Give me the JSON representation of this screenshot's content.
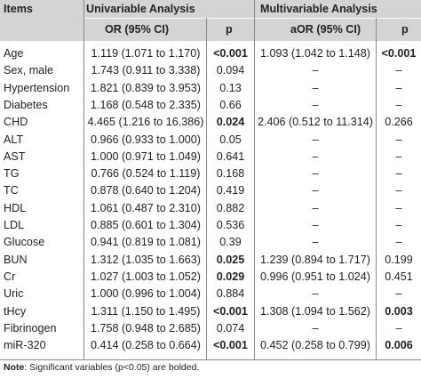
{
  "headers": {
    "items": "Items",
    "univariable": "Univariable Analysis",
    "multivariable": "Multivariable Analysis",
    "or_ci": "OR (95% CI)",
    "p1": "p",
    "aor_ci": "aOR (95% CI)",
    "p2": "p"
  },
  "rows": [
    {
      "item": "Age",
      "or": "1.119 (1.071 to 1.170)",
      "p1": "<0.001",
      "p1_bold": true,
      "aor": "1.093 (1.042 to 1.148)",
      "p2": "<0.001",
      "p2_bold": true
    },
    {
      "item": "Sex, male",
      "or": "1.743 (0.911 to 3.338)",
      "p1": "0.094",
      "p1_bold": false,
      "aor": "–",
      "p2": "–",
      "p2_bold": false
    },
    {
      "item": "Hypertension",
      "or": "1.821 (0.839 to 3.953)",
      "p1": "0.13",
      "p1_bold": false,
      "aor": "–",
      "p2": "–",
      "p2_bold": false
    },
    {
      "item": "Diabetes",
      "or": "1.168 (0.548 to 2.335)",
      "p1": "0.66",
      "p1_bold": false,
      "aor": "–",
      "p2": "–",
      "p2_bold": false
    },
    {
      "item": "CHD",
      "or": "4.465 (1.216 to 16.386)",
      "p1": "0.024",
      "p1_bold": true,
      "aor": "2.406 (0.512 to 11.314)",
      "p2": "0.266",
      "p2_bold": false
    },
    {
      "item": "ALT",
      "or": "0.966 (0.933 to 1.000)",
      "p1": "0.05",
      "p1_bold": false,
      "aor": "–",
      "p2": "–",
      "p2_bold": false
    },
    {
      "item": "AST",
      "or": "1.000 (0.971 to 1.049)",
      "p1": "0.641",
      "p1_bold": false,
      "aor": "–",
      "p2": "–",
      "p2_bold": false
    },
    {
      "item": "TG",
      "or": "0.766 (0.524 to 1.119)",
      "p1": "0.168",
      "p1_bold": false,
      "aor": "–",
      "p2": "–",
      "p2_bold": false
    },
    {
      "item": "TC",
      "or": "0.878 (0.640 to 1.204)",
      "p1": "0.419",
      "p1_bold": false,
      "aor": "–",
      "p2": "–",
      "p2_bold": false
    },
    {
      "item": "HDL",
      "or": "1.061 (0.487 to 2.310)",
      "p1": "0.882",
      "p1_bold": false,
      "aor": "–",
      "p2": "–",
      "p2_bold": false
    },
    {
      "item": "LDL",
      "or": "0.885 (0.601 to 1.304)",
      "p1": "0.536",
      "p1_bold": false,
      "aor": "–",
      "p2": "–",
      "p2_bold": false
    },
    {
      "item": "Glucose",
      "or": "0.941 (0.819 to 1.081)",
      "p1": "0.39",
      "p1_bold": false,
      "aor": "–",
      "p2": "–",
      "p2_bold": false
    },
    {
      "item": "BUN",
      "or": "1.312 (1.035 to 1.663)",
      "p1": "0.025",
      "p1_bold": true,
      "aor": "1.239 (0.894 to 1.717)",
      "p2": "0.199",
      "p2_bold": false
    },
    {
      "item": "Cr",
      "or": "1.027 (1.003 to 1.052)",
      "p1": "0.029",
      "p1_bold": true,
      "aor": "0.996 (0.951 to 1.024)",
      "p2": "0.451",
      "p2_bold": false
    },
    {
      "item": "Uric",
      "or": "1.000 (0.996 to 1.004)",
      "p1": "0.884",
      "p1_bold": false,
      "aor": "–",
      "p2": "–",
      "p2_bold": false
    },
    {
      "item": "tHcy",
      "or": "1.311 (1.150 to 1.495)",
      "p1": "<0.001",
      "p1_bold": true,
      "aor": "1.308 (1.094 to 1.562)",
      "p2": "0.003",
      "p2_bold": true
    },
    {
      "item": "Fibrinogen",
      "or": "1.758 (0.948 to 2.685)",
      "p1": "0.074",
      "p1_bold": false,
      "aor": "–",
      "p2": "–",
      "p2_bold": false
    },
    {
      "item": "miR-320",
      "or": "0.414 (0.258 to 0.664)",
      "p1": "<0.001",
      "p1_bold": true,
      "aor": "0.452 (0.258 to 0.799)",
      "p2": "0.006",
      "p2_bold": true
    }
  ],
  "note": {
    "label": "Note",
    "text": ": Significant variables (p<0.05) are bolded."
  }
}
